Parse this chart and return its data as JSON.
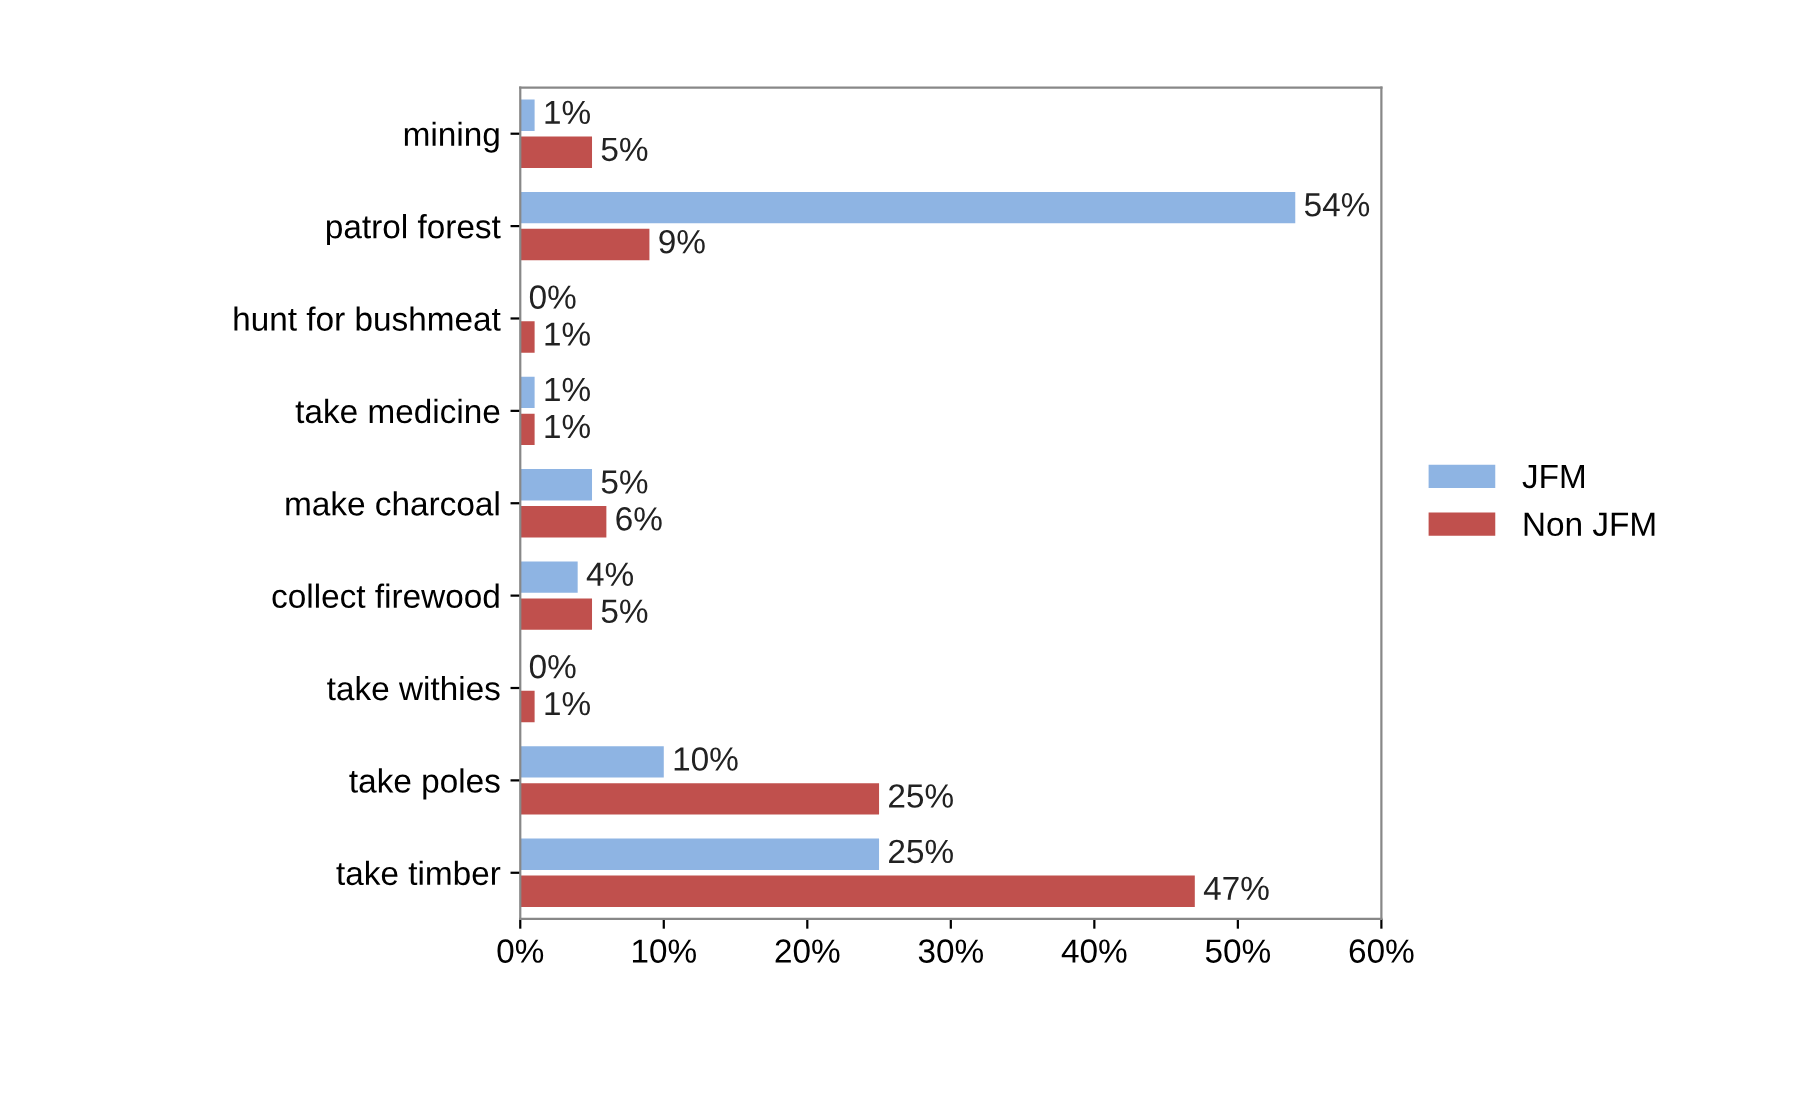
{
  "chart_data": {
    "type": "bar",
    "orientation": "horizontal",
    "categories": [
      "mining",
      "patrol forest",
      "hunt for bushmeat",
      "take medicine",
      "make charcoal",
      "collect firewood",
      "take withies",
      "take poles",
      "take timber"
    ],
    "series": [
      {
        "name": "JFM",
        "color": "#8eb4e3",
        "values": [
          1,
          54,
          0,
          1,
          5,
          4,
          0,
          10,
          25
        ],
        "value_labels": [
          "1%",
          "54%",
          "0%",
          "1%",
          "5%",
          "4%",
          "0%",
          "10%",
          "25%"
        ]
      },
      {
        "name": "Non JFM",
        "color": "#c0504d",
        "values": [
          5,
          9,
          1,
          1,
          6,
          5,
          1,
          25,
          47
        ],
        "value_labels": [
          "5%",
          "9%",
          "1%",
          "1%",
          "6%",
          "5%",
          "1%",
          "25%",
          "47%"
        ]
      }
    ],
    "xlim": [
      0,
      60
    ],
    "xticks": [
      {
        "value": 0,
        "label": "0%"
      },
      {
        "value": 10,
        "label": "10%"
      },
      {
        "value": 20,
        "label": "20%"
      },
      {
        "value": 30,
        "label": "30%"
      },
      {
        "value": 40,
        "label": "40%"
      },
      {
        "value": 50,
        "label": "50%"
      },
      {
        "value": 60,
        "label": "60%"
      }
    ],
    "grid": false,
    "legend": "right"
  }
}
